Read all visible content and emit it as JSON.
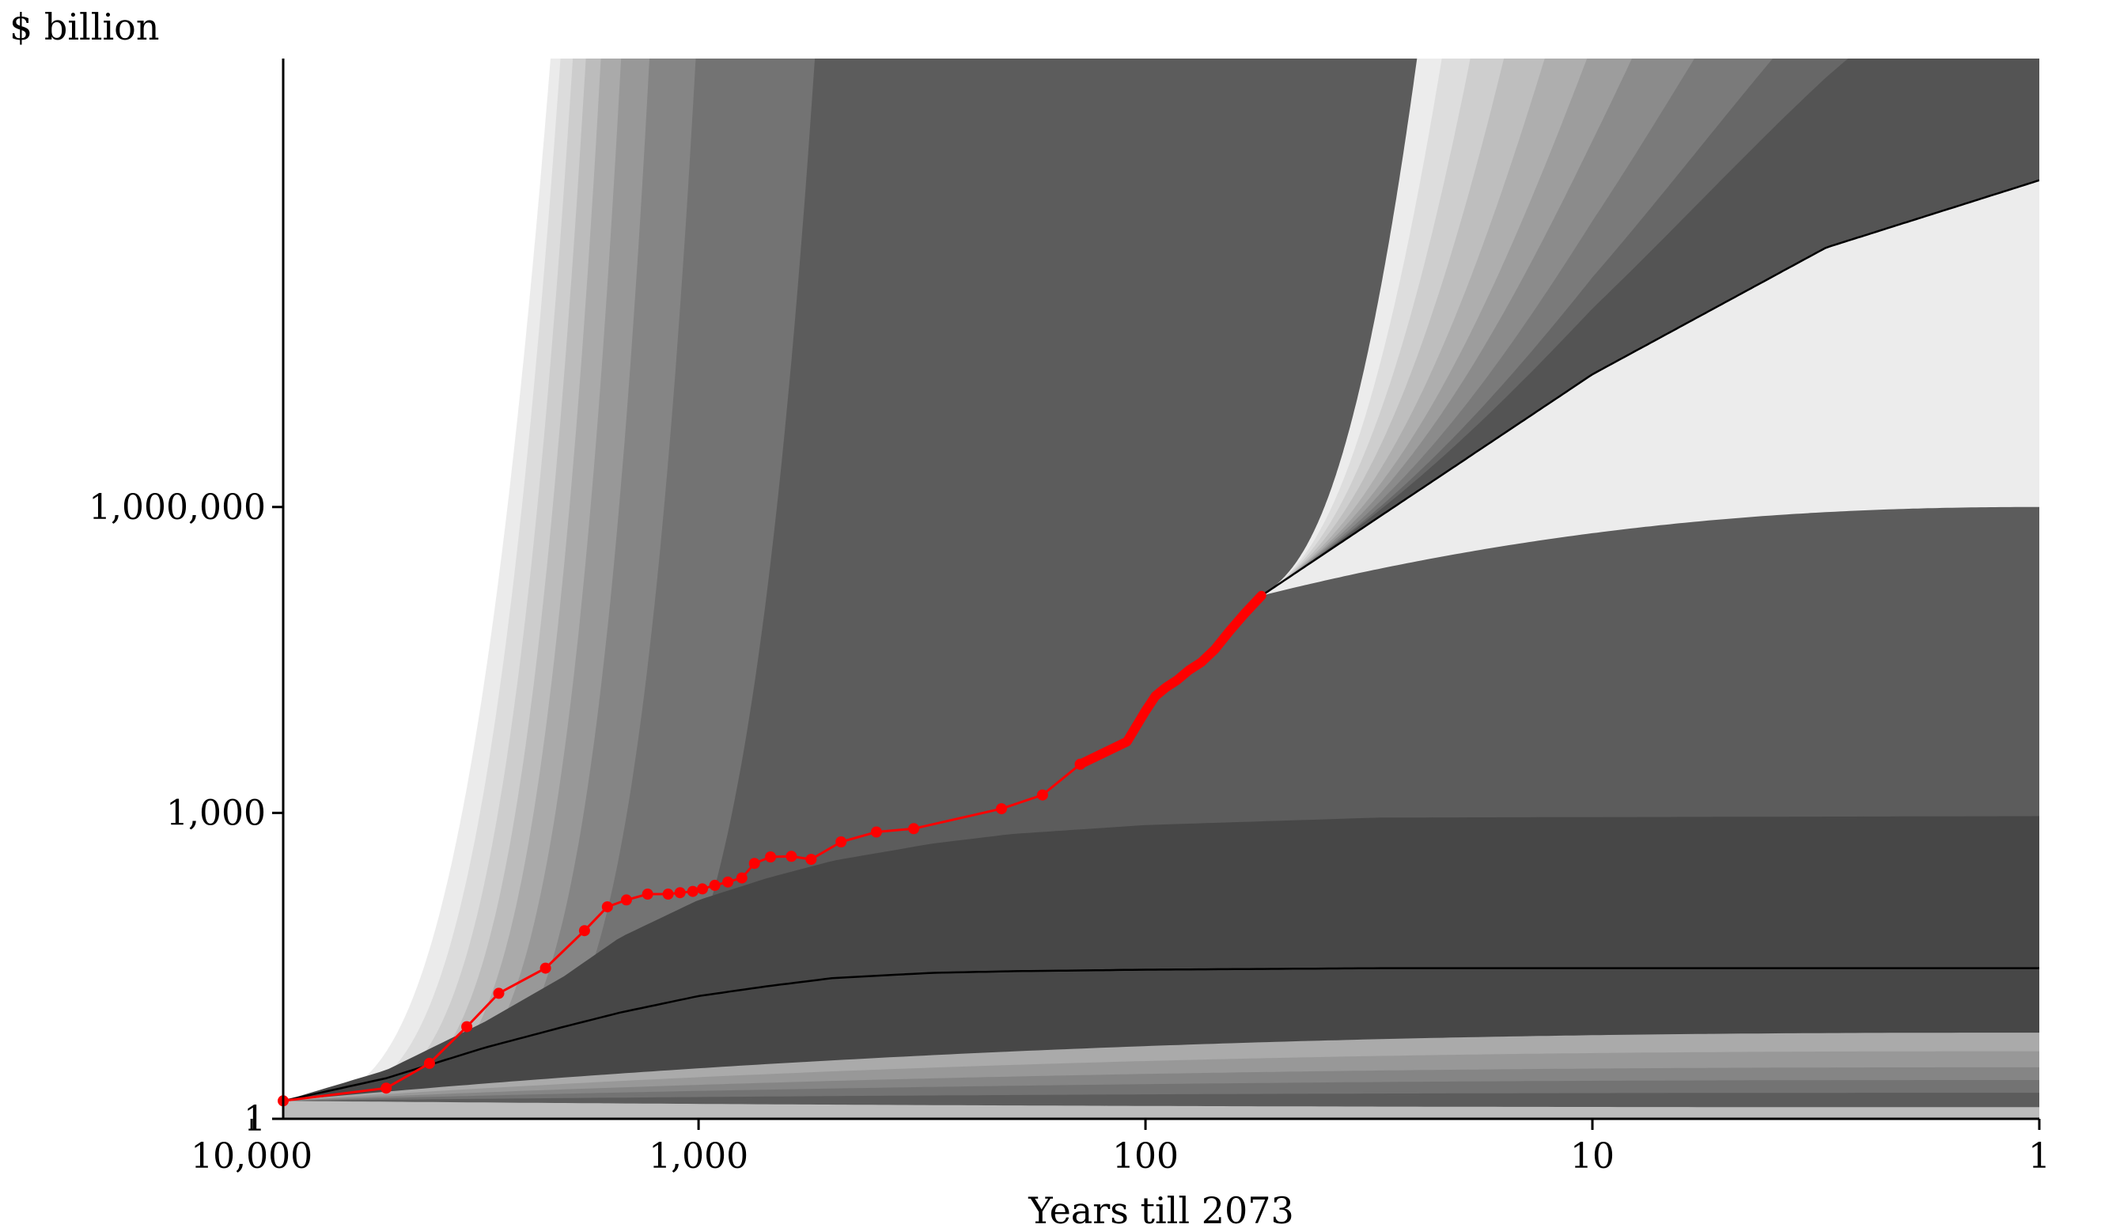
{
  "chart_data": {
    "type": "area",
    "ylabel": "$ billion",
    "xlabel": "Years till 2073",
    "x_scale": "log-reversed",
    "y_scale": "log",
    "xlim": [
      8500,
      1
    ],
    "ylim": [
      1,
      25000000000
    ],
    "x_ticks": [
      {
        "value": 10000,
        "label": "10,000"
      },
      {
        "value": 1000,
        "label": "1,000"
      },
      {
        "value": 100,
        "label": "100"
      },
      {
        "value": 10,
        "label": "10"
      },
      {
        "value": 1,
        "label": "1"
      }
    ],
    "y_ticks": [
      {
        "value": 1,
        "label": "1"
      },
      {
        "value": 1000,
        "label": "1,000"
      },
      {
        "value": 1000000,
        "label": "1,000,000"
      }
    ],
    "background_fan": {
      "origin": {
        "x": 8500,
        "y": 1.5
      },
      "median": [
        [
          8500,
          1.5
        ],
        [
          5000,
          2.5
        ],
        [
          3000,
          5
        ],
        [
          2000,
          8
        ],
        [
          1500,
          11
        ],
        [
          1000,
          16
        ],
        [
          700,
          20
        ],
        [
          500,
          24
        ],
        [
          300,
          27
        ],
        [
          200,
          28
        ],
        [
          100,
          29
        ],
        [
          30,
          30
        ],
        [
          1,
          30
        ]
      ],
      "upper_band_edges_reach_top_at_years": [
        2100,
        2000,
        1880,
        1760,
        1630,
        1470,
        1270,
        1000,
        540
      ],
      "upper_inner_edge": [
        [
          8500,
          1.5
        ],
        [
          5000,
          3
        ],
        [
          3000,
          9
        ],
        [
          2000,
          25
        ],
        [
          1500,
          60
        ],
        [
          1000,
          140
        ],
        [
          700,
          230
        ],
        [
          500,
          340
        ],
        [
          300,
          500
        ],
        [
          200,
          620
        ],
        [
          100,
          760
        ],
        [
          30,
          900
        ],
        [
          1,
          930
        ]
      ],
      "lower_band_final_levels": [
        1.8,
        2.4,
        3.2,
        4.6,
        7.0
      ],
      "colors": [
        "#ebebeb",
        "#dcdcdc",
        "#cdcdcd",
        "#bcbcbc",
        "#aaaaaa",
        "#989898",
        "#858585",
        "#737373",
        "#5c5c5c",
        "#474747"
      ]
    },
    "forecast_fan": {
      "origin": {
        "x": 55,
        "y": 135000
      },
      "median": [
        [
          55,
          135000
        ],
        [
          30,
          800000
        ],
        [
          10,
          20000000
        ],
        [
          3,
          350000000
        ],
        [
          1,
          1600000000
        ]
      ],
      "upper_band_edges_reach_top_at_years": [
        24,
        21,
        18,
        15,
        12,
        9.5,
        7.4,
        5.2,
        3.3,
        2.1
      ],
      "lower_band_final_levels": [
        30000000,
        10000000,
        6000000,
        4000000,
        3000000,
        2200000,
        1700000,
        1300000,
        1000000
      ],
      "colors": [
        "#ececec",
        "#dddddd",
        "#cecece",
        "#bebebe",
        "#aeaeae",
        "#9d9d9d",
        "#8b8b8b",
        "#7a7a7a",
        "#676767",
        "#545454",
        "#474747"
      ]
    },
    "series": [
      {
        "color": "#ff0000",
        "values": [
          [
            8500,
            1.5
          ],
          [
            5000,
            2
          ],
          [
            4000,
            3.5
          ],
          [
            3300,
            8
          ],
          [
            2800,
            17
          ],
          [
            2200,
            30
          ],
          [
            1800,
            70
          ],
          [
            1600,
            120
          ],
          [
            1450,
            140
          ],
          [
            1300,
            160
          ],
          [
            1170,
            160
          ],
          [
            1100,
            165
          ],
          [
            1030,
            170
          ],
          [
            980,
            180
          ],
          [
            920,
            195
          ],
          [
            860,
            210
          ],
          [
            800,
            230
          ],
          [
            750,
            320
          ],
          [
            690,
            370
          ],
          [
            620,
            375
          ],
          [
            560,
            350
          ],
          [
            480,
            520
          ],
          [
            400,
            650
          ],
          [
            330,
            700
          ],
          [
            210,
            1100
          ],
          [
            170,
            1500
          ],
          [
            140,
            3000
          ],
          [
            110,
            5000
          ],
          [
            100,
            10000
          ],
          [
            95,
            14000
          ],
          [
            90,
            17000
          ],
          [
            85,
            20000
          ],
          [
            80,
            25000
          ],
          [
            75,
            30000
          ],
          [
            70,
            40000
          ],
          [
            65,
            60000
          ],
          [
            60,
            90000
          ],
          [
            55,
            135000
          ]
        ]
      }
    ]
  }
}
